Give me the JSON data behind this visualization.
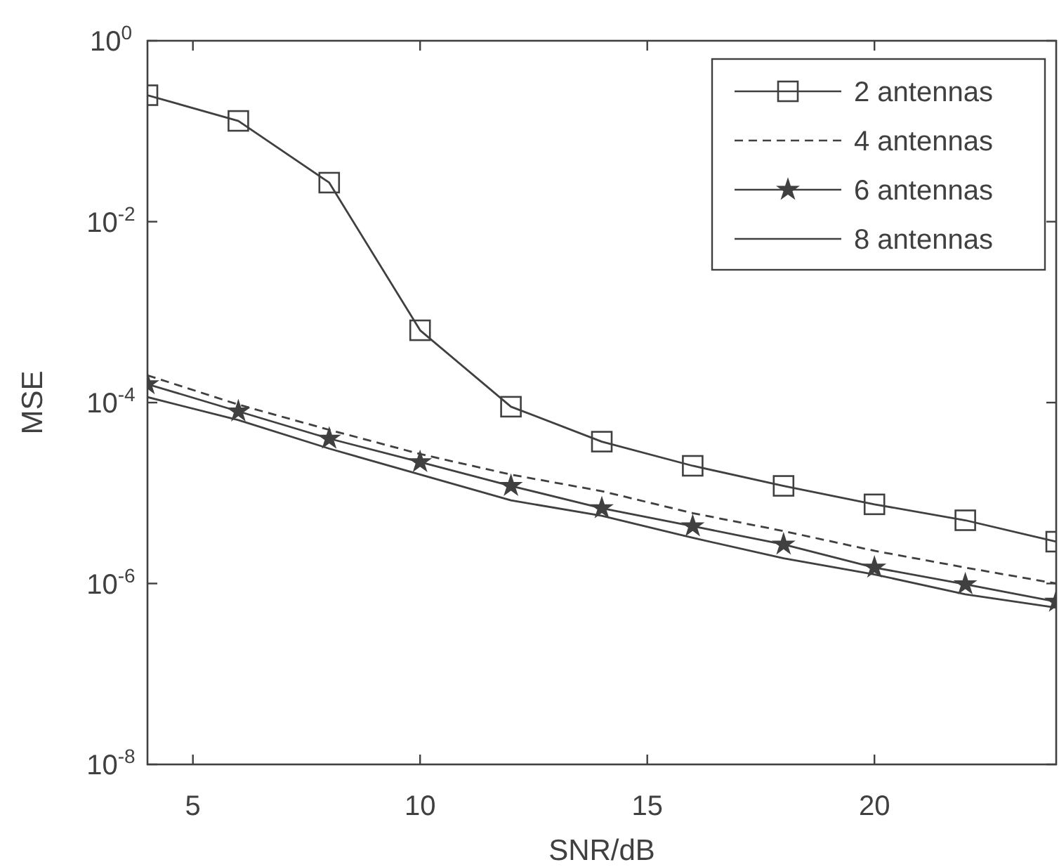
{
  "chart_data": {
    "type": "line",
    "xlabel": "SNR/dB",
    "ylabel": "MSE",
    "x": [
      4,
      6,
      8,
      10,
      12,
      14,
      16,
      18,
      20,
      22,
      24
    ],
    "series": [
      {
        "name": "2 antennas",
        "color": "#404040",
        "marker": "square",
        "line_style": "solid",
        "values": [
          0.25,
          0.13,
          0.027,
          0.00063,
          9e-05,
          3.7e-05,
          2e-05,
          1.2e-05,
          7.5e-06,
          5e-06,
          2.9e-06
        ]
      },
      {
        "name": "4 antennas",
        "color": "#404040",
        "marker": "none",
        "line_style": "dashed",
        "values": [
          0.0002,
          9.5e-05,
          5e-05,
          2.7e-05,
          1.6e-05,
          1.05e-05,
          6e-06,
          3.8e-06,
          2.3e-06,
          1.5e-06,
          1e-06
        ]
      },
      {
        "name": "6 antennas",
        "color": "#404040",
        "marker": "star",
        "line_style": "solid",
        "values": [
          0.00016,
          8e-05,
          4e-05,
          2.2e-05,
          1.2e-05,
          6.8e-06,
          4.3e-06,
          2.7e-06,
          1.5e-06,
          9.8e-07,
          6.3e-07
        ]
      },
      {
        "name": "8 antennas",
        "color": "#404040",
        "marker": "none",
        "line_style": "solid",
        "values": [
          0.000115,
          6.4e-05,
          3.1e-05,
          1.6e-05,
          8.3e-06,
          5.6e-06,
          3.2e-06,
          1.9e-06,
          1.26e-06,
          7.6e-07,
          5.4e-07
        ]
      }
    ],
    "log": "y",
    "xlim": [
      4,
      24
    ],
    "ylim": [
      1e-08,
      1
    ],
    "xticks": [
      5,
      10,
      15,
      20
    ],
    "yticks": [
      {
        "value": 1e-08,
        "label": "10$^{-8}$"
      },
      {
        "value": 1e-06,
        "label": "10$^{-6}$"
      },
      {
        "value": 0.0001,
        "label": "10$^{-4}$"
      },
      {
        "value": 0.01,
        "label": "10$^{-2}$"
      },
      {
        "value": 1,
        "label": "10$^{0}$"
      }
    ],
    "grid": false,
    "legend": "top right"
  }
}
